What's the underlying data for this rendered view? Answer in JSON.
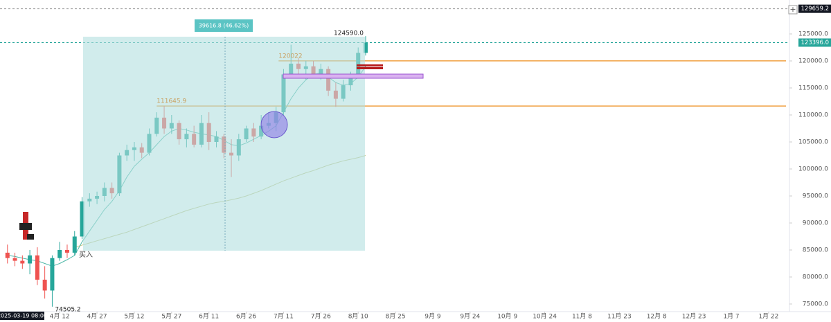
{
  "chart_data": {
    "type": "candlestick",
    "x": [
      3,
      6,
      9,
      12,
      15,
      18,
      21,
      24,
      27,
      30,
      33,
      36,
      39,
      42,
      45,
      48,
      51,
      54,
      57,
      60,
      63,
      66,
      69,
      72,
      75,
      78,
      81,
      84,
      87,
      90,
      93,
      96,
      99,
      102,
      105,
      108,
      111,
      114,
      117,
      120,
      123,
      126,
      129,
      132,
      135,
      138,
      141,
      144,
      147
    ],
    "open": [
      84500,
      83500,
      83000,
      82500,
      84000,
      79500,
      77500,
      83500,
      85000,
      84500,
      87500,
      94000,
      94500,
      95000,
      96500,
      95500,
      102500,
      103500,
      104000,
      103000,
      106500,
      109500,
      107500,
      108500,
      105500,
      106500,
      104500,
      108500,
      105000,
      106000,
      103000,
      102500,
      105500,
      107500,
      106000,
      108000,
      108500,
      110500,
      117500,
      119500,
      118500,
      119000,
      117500,
      118500,
      114500,
      113000,
      115500,
      117500,
      121500
    ],
    "high": [
      86000,
      84500,
      84000,
      85000,
      85500,
      82000,
      84000,
      86500,
      86000,
      88500,
      94800,
      95500,
      95800,
      97500,
      97500,
      103000,
      104500,
      105000,
      104800,
      107500,
      110500,
      111645.9,
      110000,
      109000,
      107500,
      108000,
      110000,
      110500,
      107000,
      106500,
      105500,
      106500,
      108000,
      108500,
      110000,
      110500,
      111500,
      118500,
      123000,
      120500,
      120022,
      120000,
      119500,
      119000,
      116000,
      116500,
      118000,
      122500,
      124590
    ],
    "low": [
      82500,
      82000,
      81500,
      80500,
      78500,
      76000,
      74505.2,
      83000,
      83500,
      84000,
      87000,
      93000,
      93500,
      94000,
      94500,
      95000,
      101500,
      101500,
      102000,
      102500,
      106000,
      106500,
      106500,
      104500,
      104000,
      104000,
      104000,
      103500,
      104000,
      102000,
      98500,
      101500,
      105000,
      105000,
      105500,
      107500,
      107000,
      110000,
      117000,
      117500,
      116500,
      117000,
      116500,
      113500,
      111500,
      112500,
      114500,
      117000,
      121000
    ],
    "close": [
      83500,
      83000,
      82500,
      84000,
      79500,
      77500,
      83500,
      85000,
      84500,
      87500,
      94000,
      94500,
      95000,
      96500,
      95500,
      102500,
      103500,
      104000,
      103000,
      106500,
      109500,
      107500,
      108500,
      105500,
      106500,
      104500,
      108500,
      105000,
      106000,
      103000,
      102500,
      105500,
      107500,
      106000,
      108000,
      108500,
      110500,
      117500,
      119500,
      118500,
      119000,
      117500,
      118500,
      114500,
      113000,
      115500,
      117500,
      121500,
      123396
    ],
    "ma_fast": [
      84000,
      83800,
      83500,
      83200,
      83000,
      82500,
      82000,
      82500,
      83200,
      84000,
      86500,
      88500,
      90500,
      92500,
      94000,
      96000,
      98500,
      100500,
      101800,
      103000,
      104500,
      106000,
      107000,
      107500,
      107200,
      106800,
      106500,
      106300,
      106000,
      105300,
      104500,
      104300,
      104800,
      105500,
      106200,
      107000,
      108000,
      110500,
      113000,
      115000,
      116500,
      117500,
      117800,
      117000,
      116000,
      115500,
      115800,
      117000,
      119000
    ],
    "ma_slow": [
      null,
      null,
      null,
      null,
      null,
      null,
      null,
      null,
      null,
      85500,
      85900,
      86300,
      86700,
      87100,
      87500,
      87900,
      88300,
      88800,
      89300,
      89800,
      90300,
      90800,
      91300,
      91800,
      92300,
      92700,
      93100,
      93500,
      93800,
      94000,
      94300,
      94600,
      95000,
      95500,
      96000,
      96600,
      97200,
      97800,
      98300,
      98800,
      99300,
      99700,
      100200,
      100700,
      101100,
      101500,
      101800,
      102100,
      102500
    ],
    "up_color": "#26a69a",
    "down_color": "#ef5350",
    "ma_fast_color": "#4fb8a8",
    "ma_slow_color": "#c8c88a",
    "xlim": [
      0,
      316
    ],
    "xticks": [
      {
        "value": 24,
        "label": "4月 12"
      },
      {
        "value": 39,
        "label": "4月 27"
      },
      {
        "value": 54,
        "label": "5月 12"
      },
      {
        "value": 69,
        "label": "5月 27"
      },
      {
        "value": 84,
        "label": "6月 11"
      },
      {
        "value": 99,
        "label": "6月 26"
      },
      {
        "value": 114,
        "label": "7月 11"
      },
      {
        "value": 129,
        "label": "7月 26"
      },
      {
        "value": 144,
        "label": "8月 10"
      },
      {
        "value": 159,
        "label": "8月 25"
      },
      {
        "value": 174,
        "label": "9月 9"
      },
      {
        "value": 189,
        "label": "9月 24"
      },
      {
        "value": 204,
        "label": "10月 9"
      },
      {
        "value": 219,
        "label": "10月 24"
      },
      {
        "value": 234,
        "label": "11月 8"
      },
      {
        "value": 249,
        "label": "11月 23"
      },
      {
        "value": 264,
        "label": "12月 8"
      },
      {
        "value": 279,
        "label": "12月 23"
      },
      {
        "value": 294,
        "label": "1月 7"
      },
      {
        "value": 309,
        "label": "1月 22"
      }
    ],
    "cursor_label": "2025-03-19 08:00",
    "ylim": [
      73590,
      131280
    ],
    "yticks": [
      {
        "value": 125000,
        "label": "125000.0"
      },
      {
        "value": 120000,
        "label": "120000.0"
      },
      {
        "value": 115000,
        "label": "115000.0"
      },
      {
        "value": 110000,
        "label": "110000.0"
      },
      {
        "value": 105000,
        "label": "105000.0"
      },
      {
        "value": 100000,
        "label": "100000.0"
      },
      {
        "value": 95000,
        "label": "95000.0"
      },
      {
        "value": 90000,
        "label": "90000.0"
      },
      {
        "value": 85000,
        "label": "85000.0"
      },
      {
        "value": 80000,
        "label": "80000.0"
      },
      {
        "value": 75000,
        "label": "75000.0"
      }
    ],
    "price_lines": [
      {
        "value": 129659.2,
        "color": "#131722"
      },
      {
        "value": 123396,
        "label": "123396.0",
        "color": "#26a69a"
      }
    ],
    "levels": [
      {
        "value": 120022,
        "x": 112
      },
      {
        "value": 111645.9,
        "x": 63
      }
    ],
    "level_color": "#f0a040",
    "annotations": [
      {
        "value": 124590,
        "label": "124590.0",
        "x": 147
      },
      {
        "value": 74505.2,
        "x": 21
      }
    ],
    "buy_label": "买入",
    "measure_label": "39616.8 (46.62%)"
  }
}
